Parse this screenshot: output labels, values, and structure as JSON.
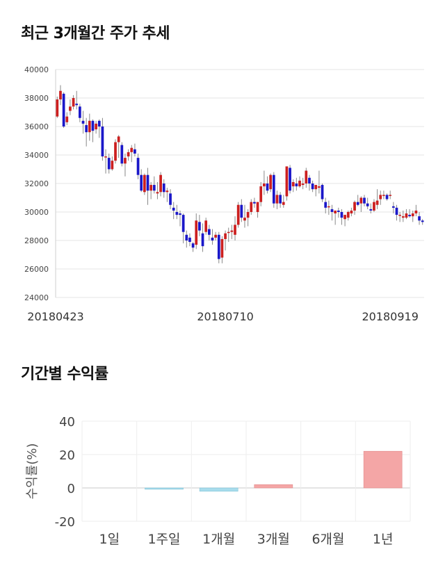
{
  "titles": {
    "price_trend": "최근 3개월간 주가 추세",
    "period_returns": "기간별 수익률"
  },
  "colors": {
    "up": "#cc1f1f",
    "down": "#1a17c9",
    "positive_bar": "#f4a6a6",
    "negative_bar": "#a8dcec",
    "grid": "#e6e6e6"
  },
  "chart_data": [
    {
      "type": "candlestick",
      "title": "최근 3개월간 주가 추세",
      "ylim": [
        24000,
        40000
      ],
      "yticks": [
        24000,
        26000,
        28000,
        30000,
        32000,
        34000,
        36000,
        38000,
        40000
      ],
      "xtick_labels": [
        "20180423",
        "20180710",
        "20180919"
      ],
      "xtick_index": [
        0,
        52,
        103
      ],
      "grid": true,
      "ohlc": [
        [
          36700,
          38100,
          36600,
          37900
        ],
        [
          37900,
          38900,
          37500,
          38500
        ],
        [
          38300,
          38400,
          35900,
          36000
        ],
        [
          36300,
          37000,
          36100,
          36700
        ],
        [
          37100,
          37900,
          36800,
          37400
        ],
        [
          37400,
          38200,
          37200,
          38000
        ],
        [
          37600,
          38500,
          37200,
          37500
        ],
        [
          37400,
          37600,
          36300,
          36600
        ],
        [
          36400,
          37100,
          35500,
          36200
        ],
        [
          36100,
          36600,
          34600,
          35600
        ],
        [
          35600,
          36900,
          35000,
          36400
        ],
        [
          36400,
          36500,
          34900,
          35700
        ],
        [
          35800,
          36400,
          35500,
          36200
        ],
        [
          36400,
          36500,
          35200,
          36000
        ],
        [
          36000,
          36600,
          33600,
          33900
        ],
        [
          33900,
          34400,
          32700,
          33900
        ],
        [
          33800,
          34100,
          32700,
          33000
        ],
        [
          33000,
          33900,
          32900,
          33600
        ],
        [
          33600,
          35100,
          33400,
          34900
        ],
        [
          34900,
          35400,
          33800,
          35300
        ],
        [
          34700,
          34900,
          33200,
          33400
        ],
        [
          33400,
          34100,
          32500,
          33800
        ],
        [
          33900,
          34400,
          33600,
          34200
        ],
        [
          34200,
          34700,
          33500,
          34500
        ],
        [
          34400,
          34800,
          33900,
          34100
        ],
        [
          33800,
          34100,
          32300,
          32600
        ],
        [
          32600,
          33000,
          31400,
          31500
        ],
        [
          31400,
          32700,
          31200,
          32600
        ],
        [
          32600,
          33100,
          30500,
          31500
        ],
        [
          31500,
          32100,
          30900,
          31900
        ],
        [
          31900,
          32500,
          31300,
          31500
        ],
        [
          31300,
          32100,
          30900,
          31400
        ],
        [
          31400,
          32800,
          31100,
          32600
        ],
        [
          32000,
          32300,
          31000,
          31400
        ],
        [
          31400,
          31700,
          30700,
          31500
        ],
        [
          31300,
          31600,
          30200,
          30500
        ],
        [
          30300,
          30700,
          29500,
          30100
        ],
        [
          30000,
          30500,
          29500,
          29800
        ],
        [
          29900,
          30100,
          29000,
          29800
        ],
        [
          29800,
          29900,
          27800,
          28600
        ],
        [
          28400,
          28700,
          27500,
          28000
        ],
        [
          28200,
          28500,
          27600,
          27900
        ],
        [
          27800,
          27900,
          27200,
          27500
        ],
        [
          27700,
          29900,
          27400,
          29400
        ],
        [
          29300,
          29800,
          28300,
          28700
        ],
        [
          28500,
          29200,
          27200,
          27600
        ],
        [
          28600,
          29600,
          28400,
          29400
        ],
        [
          28800,
          29100,
          28000,
          28400
        ],
        [
          28200,
          28800,
          27700,
          28000
        ],
        [
          28200,
          28600,
          28000,
          28400
        ],
        [
          28400,
          28600,
          26400,
          26700
        ],
        [
          26800,
          28300,
          26400,
          28100
        ],
        [
          28100,
          28700,
          27300,
          28500
        ],
        [
          28600,
          28900,
          27900,
          28600
        ],
        [
          28600,
          29100,
          28100,
          28700
        ],
        [
          28400,
          29700,
          28000,
          29100
        ],
        [
          29100,
          30700,
          28900,
          30500
        ],
        [
          30500,
          30900,
          29300,
          29600
        ],
        [
          29400,
          30500,
          28900,
          29600
        ],
        [
          29600,
          30200,
          29000,
          30000
        ],
        [
          30000,
          30900,
          29800,
          30700
        ],
        [
          30700,
          31000,
          30300,
          30600
        ],
        [
          30000,
          30700,
          29600,
          30700
        ],
        [
          30700,
          32100,
          30400,
          31800
        ],
        [
          31800,
          32900,
          31200,
          32000
        ],
        [
          32000,
          32500,
          31300,
          31500
        ],
        [
          31600,
          32700,
          31400,
          32600
        ],
        [
          32600,
          32800,
          30300,
          30600
        ],
        [
          30600,
          31500,
          30200,
          31200
        ],
        [
          31200,
          31400,
          30300,
          30600
        ],
        [
          30500,
          31200,
          30300,
          30700
        ],
        [
          31100,
          33100,
          30800,
          33200
        ],
        [
          33100,
          33300,
          31300,
          31500
        ],
        [
          31800,
          32300,
          31400,
          32100
        ],
        [
          32000,
          32400,
          31500,
          31800
        ],
        [
          31800,
          32500,
          31700,
          32200
        ],
        [
          31900,
          32400,
          31600,
          32000
        ],
        [
          32000,
          33100,
          31700,
          32900
        ],
        [
          32400,
          32600,
          31500,
          32000
        ],
        [
          32000,
          32200,
          31400,
          31600
        ],
        [
          31600,
          31900,
          31100,
          31900
        ],
        [
          31700,
          32900,
          31300,
          31800
        ],
        [
          31900,
          32000,
          30700,
          30900
        ],
        [
          30700,
          31000,
          29900,
          30300
        ],
        [
          30400,
          30800,
          29800,
          30400
        ],
        [
          30200,
          30500,
          29400,
          30000
        ],
        [
          29900,
          30100,
          29100,
          30100
        ],
        [
          30100,
          30300,
          29600,
          30000
        ],
        [
          30000,
          30200,
          29100,
          29600
        ],
        [
          29500,
          29800,
          29000,
          29800
        ],
        [
          29600,
          30100,
          29400,
          30000
        ],
        [
          29900,
          30300,
          29700,
          30100
        ],
        [
          30100,
          30800,
          29800,
          30700
        ],
        [
          30700,
          31200,
          30400,
          30500
        ],
        [
          30600,
          31100,
          30000,
          31000
        ],
        [
          31000,
          31200,
          30400,
          30600
        ],
        [
          30600,
          31000,
          30200,
          30400
        ],
        [
          30200,
          30600,
          29900,
          30100
        ],
        [
          30100,
          30900,
          30000,
          30700
        ],
        [
          30500,
          31600,
          30200,
          30800
        ],
        [
          30900,
          31500,
          30500,
          31200
        ],
        [
          31200,
          31500,
          30900,
          31200
        ],
        [
          31200,
          31300,
          30800,
          30900
        ],
        [
          31200,
          31500,
          30900,
          31200
        ],
        [
          30400,
          30700,
          29900,
          30300
        ],
        [
          30300,
          30500,
          29400,
          29800
        ],
        [
          29800,
          30000,
          29300,
          29800
        ],
        [
          29600,
          30100,
          29300,
          29700
        ],
        [
          29600,
          30200,
          29500,
          29900
        ],
        [
          29800,
          30200,
          29600,
          29700
        ],
        [
          29700,
          30100,
          29300,
          29900
        ],
        [
          29900,
          30500,
          29700,
          30100
        ],
        [
          29700,
          30000,
          29100,
          29400
        ],
        [
          29400,
          29500,
          29100,
          29300
        ]
      ]
    },
    {
      "type": "bar",
      "title": "기간별 수익률",
      "ylabel": "수익률(%)",
      "categories": [
        "1일",
        "1주일",
        "1개월",
        "3개월",
        "6개월",
        "1년"
      ],
      "values": [
        0.0,
        -0.8,
        -2.0,
        2.0,
        0.0,
        22.0
      ],
      "ylim": [
        -20,
        40
      ],
      "yticks": [
        -20,
        0,
        20,
        40
      ],
      "grid": true
    }
  ]
}
